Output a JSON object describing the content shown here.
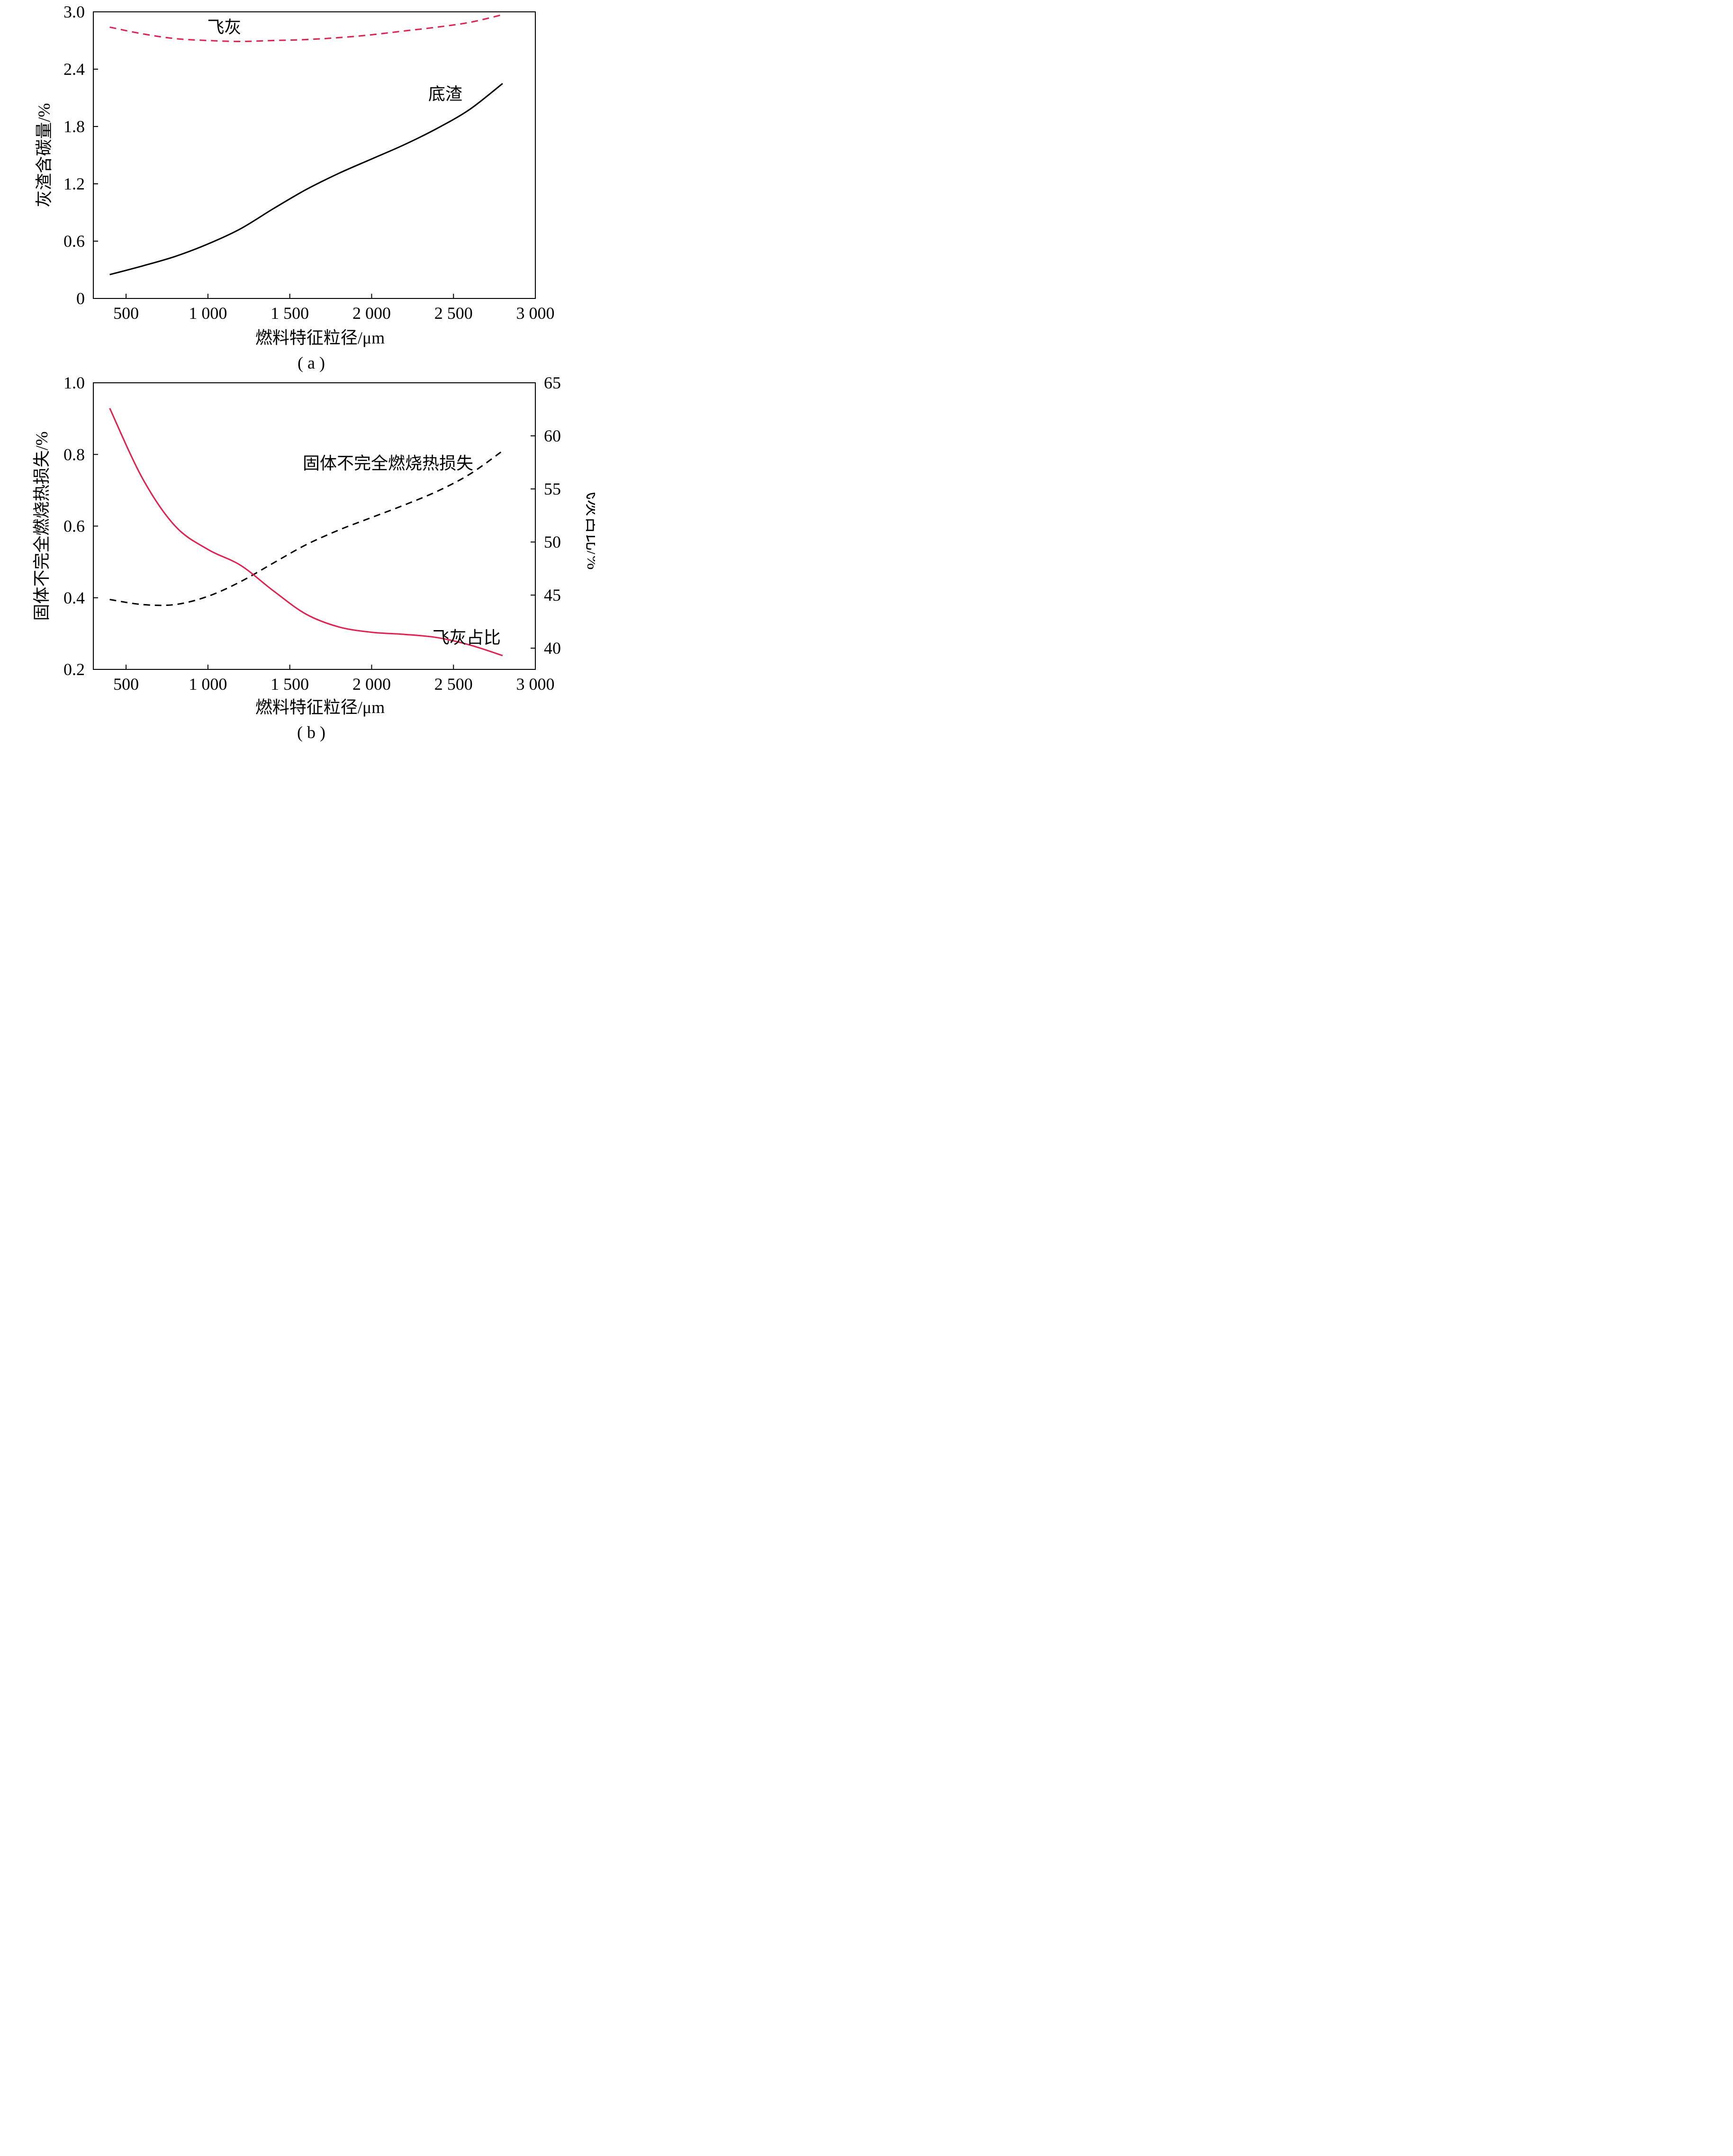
{
  "colors": {
    "accent": "#e0204f",
    "ink": "#000000"
  },
  "chart_data": [
    {
      "type": "line",
      "panel_caption": "( a )",
      "xlabel": "燃料特征粒径/μm",
      "ylabel": "灰渣含碳量/%",
      "xlim": [
        300,
        3000
      ],
      "ylim": [
        0,
        3.0
      ],
      "x_ticks": [
        500,
        1000,
        1500,
        2000,
        2500,
        3000
      ],
      "x_tick_labels": [
        "500",
        "1 000",
        "1 500",
        "2 000",
        "2 500",
        "3 000"
      ],
      "y_ticks": [
        0,
        0.6,
        1.2,
        1.8,
        2.4,
        3.0
      ],
      "y_tick_labels": [
        "0",
        "0.6",
        "1.2",
        "1.8",
        "2.4",
        "3.0"
      ],
      "grid": false,
      "series": [
        {
          "name": "飞灰",
          "style": "dashed",
          "color": "#e0204f",
          "x": [
            400,
            600,
            800,
            1000,
            1200,
            1400,
            1600,
            1800,
            2000,
            2200,
            2400,
            2600,
            2800
          ],
          "y": [
            2.84,
            2.77,
            2.72,
            2.7,
            2.69,
            2.7,
            2.71,
            2.73,
            2.76,
            2.8,
            2.84,
            2.89,
            2.97
          ]
        },
        {
          "name": "底渣",
          "style": "solid",
          "color": "#000000",
          "x": [
            400,
            600,
            800,
            1000,
            1200,
            1400,
            1600,
            1800,
            2000,
            2200,
            2400,
            2600,
            2800
          ],
          "y": [
            0.25,
            0.34,
            0.44,
            0.57,
            0.73,
            0.94,
            1.14,
            1.31,
            1.46,
            1.61,
            1.78,
            1.98,
            2.25
          ]
        }
      ]
    },
    {
      "type": "line",
      "panel_caption": "( b )",
      "xlabel": "燃料特征粒径/μm",
      "ylabel": "固体不完全燃烧热损失/%",
      "ylabel_right": "飞灰占比/%",
      "xlim": [
        300,
        3000
      ],
      "ylim": [
        0.2,
        1.0
      ],
      "ylim_right": [
        38,
        65
      ],
      "x_ticks": [
        500,
        1000,
        1500,
        2000,
        2500,
        3000
      ],
      "x_tick_labels": [
        "500",
        "1 000",
        "1 500",
        "2 000",
        "2 500",
        "3 000"
      ],
      "y_ticks": [
        0.2,
        0.4,
        0.6,
        0.8,
        1.0
      ],
      "y_tick_labels": [
        "0.2",
        "0.4",
        "0.6",
        "0.8",
        "1.0"
      ],
      "y_ticks_right": [
        40,
        45,
        50,
        55,
        60,
        65
      ],
      "y_tick_labels_right": [
        "40",
        "45",
        "50",
        "55",
        "60",
        "65"
      ],
      "grid": false,
      "series": [
        {
          "name": "固体不完全燃烧热损失",
          "axis": "left",
          "style": "dashed",
          "color": "#000000",
          "x": [
            400,
            600,
            800,
            1000,
            1200,
            1400,
            1600,
            1800,
            2000,
            2200,
            2400,
            2600,
            2800
          ],
          "y": [
            0.395,
            0.381,
            0.381,
            0.404,
            0.445,
            0.497,
            0.548,
            0.589,
            0.624,
            0.659,
            0.697,
            0.745,
            0.81
          ]
        },
        {
          "name": "飞灰占比",
          "axis": "right",
          "style": "solid",
          "color": "#e0204f",
          "x": [
            400,
            600,
            800,
            1000,
            1200,
            1400,
            1600,
            1800,
            2000,
            2200,
            2400,
            2600,
            2800
          ],
          "y": [
            62.6,
            56.0,
            51.5,
            49.3,
            47.8,
            45.4,
            43.2,
            42.0,
            41.5,
            41.3,
            41.0,
            40.3,
            39.3
          ]
        }
      ]
    }
  ],
  "annotations": [
    {
      "panel": 0,
      "text": "飞灰",
      "x": 1100,
      "y": 2.84
    },
    {
      "panel": 0,
      "text": "底渣",
      "x": 2450,
      "y": 2.14
    },
    {
      "panel": 1,
      "text": "固体不完全燃烧热损失",
      "x": 2100,
      "y": 0.775
    },
    {
      "panel": 1,
      "text": "飞灰占比",
      "x": 2580,
      "y": 41.0,
      "axis": "right"
    }
  ]
}
